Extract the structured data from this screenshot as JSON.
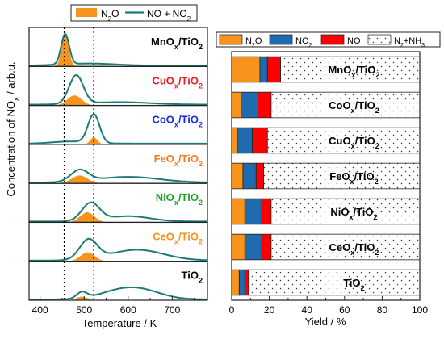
{
  "chart_data": [
    {
      "type": "area",
      "xlabel": "Temperature / K",
      "ylabel": "Concentration of NOx / arb.u.",
      "xlim": [
        375,
        780
      ],
      "xticks": [
        400,
        500,
        600,
        700
      ],
      "reference_lines_x": [
        455,
        522
      ],
      "legend": {
        "placement": "top",
        "entries": [
          {
            "label": "N2O",
            "color": "#f7941d"
          },
          {
            "label": "NO + NO2",
            "color": "#1b7b74"
          }
        ]
      },
      "panels": [
        {
          "label": "MnOx/TiO2",
          "label_color": "#000000",
          "n2o": [
            {
              "c": 457,
              "w": 8,
              "a": 0.9
            }
          ],
          "nox": [
            {
              "c": 457,
              "w": 9,
              "a": 0.85
            },
            {
              "c": 510,
              "w": 60,
              "a": 0.06
            }
          ]
        },
        {
          "label": "CuOx/TiO2",
          "label_color": "#ed1c24",
          "n2o": [
            {
              "c": 478,
              "w": 16,
              "a": 0.28
            }
          ],
          "nox": [
            {
              "c": 482,
              "w": 16,
              "a": 0.8
            },
            {
              "c": 580,
              "w": 70,
              "a": 0.07
            }
          ]
        },
        {
          "label": "CoOx/TiO2",
          "label_color": "#1a2ee0",
          "n2o": [
            {
              "c": 522,
              "w": 8,
              "a": 0.2
            }
          ],
          "nox": [
            {
              "c": 522,
              "w": 13,
              "a": 0.8
            },
            {
              "c": 470,
              "w": 40,
              "a": 0.06
            }
          ]
        },
        {
          "label": "FeOx/TiO2",
          "label_color": "#f47920",
          "n2o": [
            {
              "c": 490,
              "w": 18,
              "a": 0.22
            }
          ],
          "nox": [
            {
              "c": 490,
              "w": 20,
              "a": 0.32
            },
            {
              "c": 600,
              "w": 70,
              "a": 0.16
            }
          ]
        },
        {
          "label": "NiOx/TiO2",
          "label_color": "#1e9f2c",
          "n2o": [
            {
              "c": 507,
              "w": 16,
              "a": 0.28
            }
          ],
          "nox": [
            {
              "c": 515,
              "w": 20,
              "a": 0.5
            },
            {
              "c": 600,
              "w": 50,
              "a": 0.15
            }
          ]
        },
        {
          "label": "CeOx/TiO2",
          "label_color": "#f7941d",
          "n2o": [
            {
              "c": 508,
              "w": 16,
              "a": 0.25
            }
          ],
          "nox": [
            {
              "c": 510,
              "w": 20,
              "a": 0.55
            },
            {
              "c": 620,
              "w": 60,
              "a": 0.3
            }
          ]
        },
        {
          "label": "TiO2",
          "label_color": "#000000",
          "n2o": [
            {
              "c": 495,
              "w": 12,
              "a": 0.1
            }
          ],
          "nox": [
            {
              "c": 495,
              "w": 12,
              "a": 0.18
            },
            {
              "c": 620,
              "w": 50,
              "a": 0.3
            },
            {
              "c": 560,
              "w": 40,
              "a": 0.1
            }
          ]
        }
      ]
    },
    {
      "type": "bar",
      "orientation": "horizontal",
      "stacked": true,
      "xlabel": "Yield / %",
      "xlim": [
        0,
        100
      ],
      "xticks": [
        0,
        20,
        40,
        60,
        80,
        100
      ],
      "categories": [
        "MnOx/TiO2",
        "CoOx/TiO2",
        "CuOx/TiO2",
        "FeOx/TiO2",
        "NiOx/TiO2",
        "CeOx/TiO2",
        "TiO2"
      ],
      "series": [
        {
          "name": "N2O",
          "color": "#f7941d",
          "values": [
            15,
            5,
            3,
            6,
            7,
            7,
            4
          ]
        },
        {
          "name": "NO2",
          "color": "#1f6bb0",
          "values": [
            4,
            9,
            8,
            7,
            9,
            9,
            3
          ]
        },
        {
          "name": "NO",
          "color": "#ff0000",
          "values": [
            7,
            7,
            8,
            4,
            5,
            5,
            2
          ]
        },
        {
          "name": "N2+NH3",
          "pattern": "dots",
          "values": [
            74,
            79,
            81,
            83,
            79,
            79,
            91
          ]
        }
      ],
      "legend": {
        "placement": "top"
      }
    }
  ]
}
